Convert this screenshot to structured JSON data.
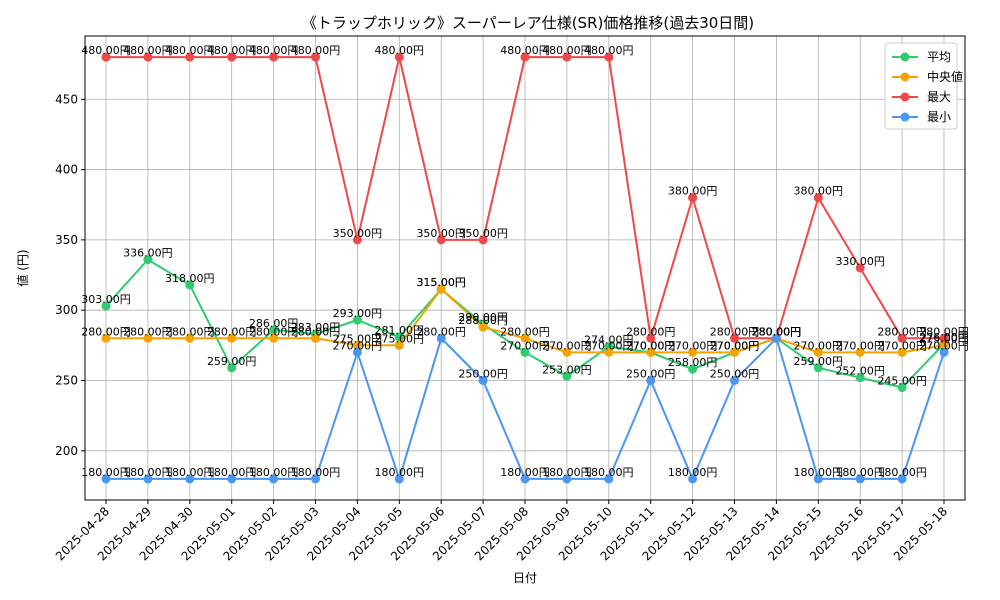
{
  "chart_data": {
    "type": "line",
    "title": "《トラップホリック》スーパーレア仕様(SR)価格推移(過去30日間)",
    "xlabel": "日付",
    "ylabel": "値 (円)",
    "ylim": [
      165,
      495
    ],
    "yticks": [
      200,
      250,
      300,
      350,
      400,
      450
    ],
    "grid": true,
    "legend_position": "top-right",
    "label_suffix": "円",
    "categories": [
      "2025-04-28",
      "2025-04-29",
      "2025-04-30",
      "2025-05-01",
      "2025-05-02",
      "2025-05-03",
      "2025-05-04",
      "2025-05-05",
      "2025-05-06",
      "2025-05-07",
      "2025-05-08",
      "2025-05-09",
      "2025-05-10",
      "2025-05-11",
      "2025-05-12",
      "2025-05-13",
      "2025-05-14",
      "2025-05-15",
      "2025-05-16",
      "2025-05-17",
      "2025-05-18"
    ],
    "series": [
      {
        "name": "平均",
        "color": "#2ecc71",
        "values": [
          303,
          336,
          318,
          259,
          286,
          283,
          293,
          281,
          315,
          290,
          270,
          253,
          274,
          270,
          258,
          270,
          280,
          259,
          252,
          245,
          276
        ]
      },
      {
        "name": "中央値",
        "color": "#f5a300",
        "values": [
          280,
          280,
          280,
          280,
          280,
          280,
          275,
          275,
          315,
          288,
          280,
          270,
          270,
          270,
          270,
          270,
          280,
          270,
          270,
          270,
          275
        ]
      },
      {
        "name": "最大",
        "color": "#f04848",
        "values": [
          480,
          480,
          480,
          480,
          480,
          480,
          350,
          480,
          350,
          350,
          480,
          480,
          480,
          280,
          380,
          280,
          280,
          380,
          330,
          280,
          280
        ]
      },
      {
        "name": "最小",
        "color": "#4a96f0",
        "values": [
          180,
          180,
          180,
          180,
          180,
          180,
          270,
          180,
          280,
          250,
          180,
          180,
          180,
          250,
          180,
          250,
          280,
          180,
          180,
          180,
          270
        ]
      }
    ]
  }
}
